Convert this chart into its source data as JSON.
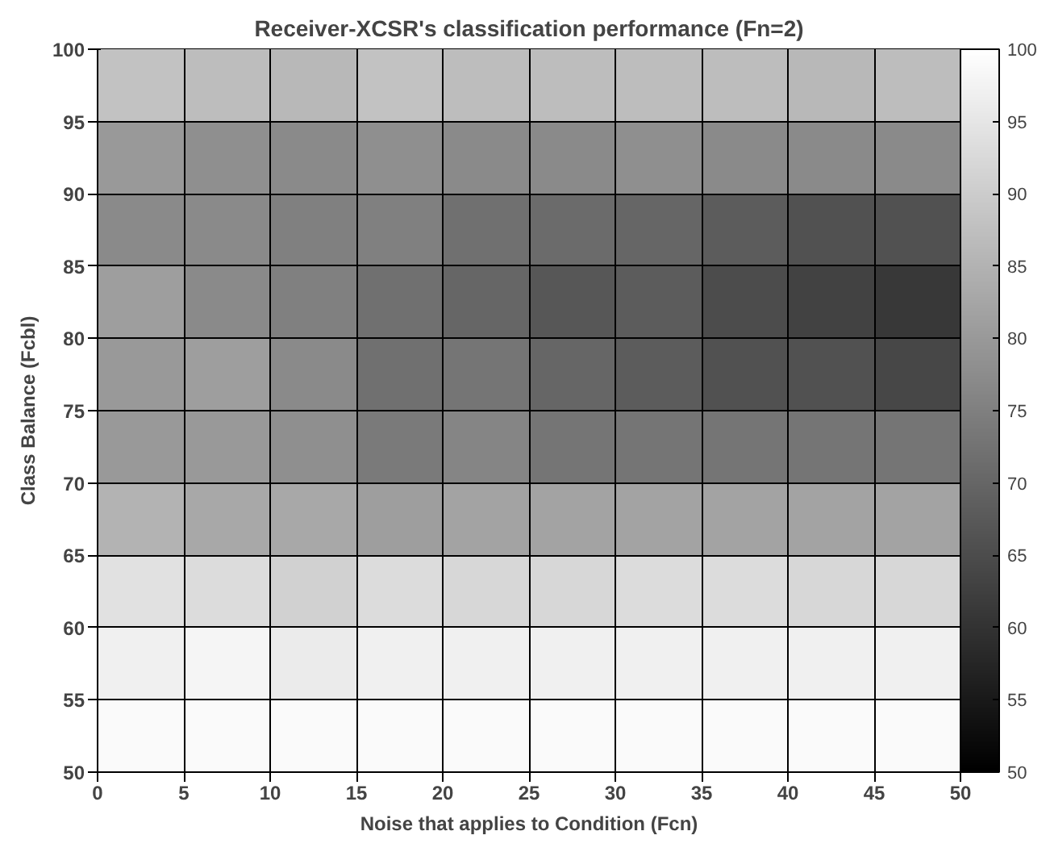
{
  "chart_data": {
    "type": "heatmap",
    "title": "Receiver-XCSR's classification performance (Fn=2)",
    "xlabel": "Noise that applies to Condition (Fcn)",
    "ylabel": "Class Balance (Fcbl)",
    "xlim": [
      0,
      50
    ],
    "xticks": [
      0,
      5,
      10,
      15,
      20,
      25,
      30,
      35,
      40,
      45,
      50
    ],
    "ylim": [
      50,
      100
    ],
    "yticks": [
      50,
      55,
      60,
      65,
      70,
      75,
      80,
      85,
      90,
      95,
      100
    ],
    "clim": [
      50,
      100
    ],
    "cticks": [
      50,
      55,
      60,
      65,
      70,
      75,
      80,
      85,
      90,
      95,
      100
    ],
    "grid": true,
    "cells": [
      [
        88,
        87,
        86,
        88,
        87,
        87,
        87,
        87,
        86,
        87
      ],
      [
        80,
        78,
        77,
        78,
        77,
        77,
        78,
        77,
        77,
        77
      ],
      [
        77,
        77,
        75,
        75,
        72,
        71,
        70,
        68,
        66,
        66
      ],
      [
        81,
        77,
        75,
        72,
        70,
        67,
        68,
        65,
        63,
        61
      ],
      [
        80,
        81,
        77,
        72,
        73,
        70,
        68,
        66,
        66,
        64
      ],
      [
        80,
        80,
        78,
        74,
        76,
        73,
        73,
        73,
        73,
        73
      ],
      [
        85,
        83,
        83,
        81,
        82,
        82,
        82,
        82,
        82,
        82
      ],
      [
        94,
        93,
        91,
        93,
        92,
        92,
        93,
        93,
        92,
        92
      ],
      [
        97,
        98,
        96,
        97,
        97,
        97,
        97,
        97,
        97,
        97
      ],
      [
        99,
        99,
        99,
        99,
        99,
        99,
        99,
        99,
        99,
        99
      ]
    ]
  }
}
